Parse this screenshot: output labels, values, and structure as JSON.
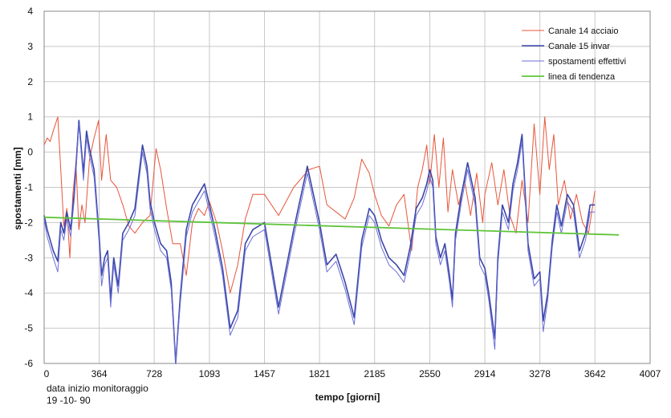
{
  "chart_data": {
    "type": "line",
    "title": "",
    "xlabel": "tempo [giorni]",
    "ylabel": "spostamenti [mm]",
    "xlim": [
      0,
      4007
    ],
    "ylim": [
      -6,
      4
    ],
    "xticks": [
      0,
      364,
      728,
      1093,
      1457,
      1821,
      2185,
      2550,
      2914,
      3278,
      3642,
      4007
    ],
    "yticks": [
      4,
      3,
      2,
      1,
      0,
      -1,
      -2,
      -3,
      -4,
      -5,
      -6
    ],
    "grid": true,
    "legend_position": "top-right",
    "series": [
      {
        "name": "Canale 14 acciaio",
        "color": "#e8553a",
        "x": [
          0,
          20,
          40,
          60,
          90,
          110,
          130,
          150,
          170,
          190,
          210,
          230,
          250,
          270,
          300,
          330,
          360,
          380,
          410,
          440,
          480,
          520,
          560,
          600,
          650,
          700,
          740,
          770,
          810,
          850,
          900,
          940,
          980,
          1020,
          1060,
          1093,
          1140,
          1180,
          1230,
          1280,
          1330,
          1380,
          1457,
          1550,
          1650,
          1750,
          1821,
          1870,
          1930,
          1990,
          2050,
          2100,
          2150,
          2185,
          2230,
          2280,
          2330,
          2380,
          2430,
          2470,
          2500,
          2530,
          2550,
          2580,
          2610,
          2640,
          2670,
          2700,
          2740,
          2780,
          2820,
          2860,
          2900,
          2914,
          2960,
          3000,
          3040,
          3080,
          3120,
          3160,
          3200,
          3240,
          3278,
          3310,
          3340,
          3370,
          3400,
          3440,
          3480,
          3520,
          3560,
          3600,
          3642
        ],
        "y": [
          0.2,
          0.4,
          0.3,
          0.6,
          1.0,
          -0.5,
          -2.1,
          -1.6,
          -3.0,
          -1.2,
          -0.3,
          -2.2,
          -1.5,
          -2.0,
          -0.2,
          0.4,
          0.9,
          -0.8,
          0.5,
          -0.8,
          -1.0,
          -1.5,
          -2.1,
          -2.3,
          -2.0,
          -1.8,
          0.1,
          -0.5,
          -1.6,
          -2.6,
          -2.6,
          -3.5,
          -2.0,
          -1.6,
          -1.8,
          -1.4,
          -2.0,
          -2.8,
          -4.0,
          -3.2,
          -1.9,
          -1.2,
          -1.2,
          -1.8,
          -1.0,
          -0.5,
          -0.4,
          -1.5,
          -1.7,
          -1.9,
          -1.3,
          -0.2,
          -0.6,
          -1.2,
          -1.8,
          -2.1,
          -1.5,
          -1.2,
          -2.8,
          -1.0,
          -0.5,
          0.2,
          -0.9,
          0.5,
          -1.0,
          0.4,
          -1.7,
          -0.5,
          -1.5,
          -0.8,
          -1.8,
          -0.6,
          -2.0,
          -1.2,
          -0.3,
          -1.5,
          -0.5,
          -1.8,
          -2.3,
          -0.8,
          -2.0,
          0.8,
          -1.2,
          1.0,
          -0.5,
          0.5,
          -1.5,
          -0.8,
          -1.9,
          -1.2,
          -2.0,
          -2.3,
          -1.1
        ]
      },
      {
        "name": "Canale 15 invar",
        "color": "#3a46a8",
        "x": [
          0,
          20,
          60,
          90,
          110,
          130,
          150,
          175,
          200,
          230,
          260,
          280,
          300,
          330,
          364,
          380,
          400,
          420,
          440,
          460,
          490,
          520,
          560,
          600,
          650,
          680,
          700,
          730,
          770,
          810,
          840,
          870,
          900,
          940,
          980,
          1020,
          1060,
          1093,
          1130,
          1180,
          1230,
          1280,
          1330,
          1380,
          1457,
          1550,
          1650,
          1740,
          1821,
          1870,
          1930,
          1990,
          2050,
          2100,
          2150,
          2185,
          2230,
          2280,
          2330,
          2380,
          2420,
          2460,
          2500,
          2530,
          2550,
          2570,
          2590,
          2620,
          2650,
          2680,
          2700,
          2720,
          2760,
          2800,
          2850,
          2880,
          2914,
          2940,
          2980,
          3000,
          3030,
          3070,
          3100,
          3130,
          3160,
          3200,
          3240,
          3278,
          3300,
          3330,
          3360,
          3390,
          3420,
          3460,
          3500,
          3540,
          3580,
          3610,
          3642
        ],
        "y": [
          -1.8,
          -2.2,
          -2.8,
          -3.1,
          -2.0,
          -2.3,
          -1.7,
          -2.2,
          -1.1,
          0.9,
          -0.6,
          0.6,
          0.1,
          -0.5,
          -2.4,
          -3.5,
          -3.0,
          -2.8,
          -4.2,
          -3.0,
          -3.8,
          -2.3,
          -2.0,
          -1.6,
          0.2,
          -0.4,
          -1.4,
          -2.0,
          -2.6,
          -2.8,
          -3.7,
          -6.0,
          -4.1,
          -2.2,
          -1.5,
          -1.2,
          -0.9,
          -1.5,
          -2.2,
          -3.3,
          -5.0,
          -4.5,
          -2.6,
          -2.2,
          -2.0,
          -4.4,
          -2.2,
          -0.4,
          -2.0,
          -3.2,
          -2.9,
          -3.7,
          -4.7,
          -2.5,
          -1.6,
          -1.8,
          -2.5,
          -3.0,
          -3.2,
          -3.5,
          -2.7,
          -1.6,
          -1.3,
          -0.9,
          -0.5,
          -0.8,
          -2.4,
          -3.0,
          -2.6,
          -3.5,
          -4.2,
          -2.3,
          -1.2,
          -0.3,
          -1.3,
          -3.0,
          -3.3,
          -4.0,
          -5.3,
          -3.0,
          -1.5,
          -2.0,
          -0.9,
          -0.3,
          0.5,
          -2.6,
          -3.6,
          -3.4,
          -4.8,
          -4.0,
          -2.5,
          -1.5,
          -2.1,
          -1.2,
          -1.5,
          -2.8,
          -2.3,
          -1.5,
          -1.5
        ]
      },
      {
        "name": "spostamenti effettivi",
        "color": "#6b6fd6",
        "x": [
          0,
          20,
          60,
          90,
          110,
          130,
          150,
          175,
          200,
          230,
          260,
          280,
          300,
          330,
          364,
          380,
          400,
          420,
          440,
          460,
          490,
          520,
          560,
          600,
          650,
          680,
          700,
          730,
          770,
          810,
          840,
          870,
          900,
          940,
          980,
          1020,
          1060,
          1093,
          1130,
          1180,
          1230,
          1280,
          1330,
          1380,
          1457,
          1550,
          1650,
          1740,
          1821,
          1870,
          1930,
          1990,
          2050,
          2100,
          2150,
          2185,
          2230,
          2280,
          2330,
          2380,
          2420,
          2460,
          2500,
          2530,
          2550,
          2570,
          2590,
          2620,
          2650,
          2680,
          2700,
          2720,
          2760,
          2800,
          2850,
          2880,
          2914,
          2940,
          2980,
          3000,
          3030,
          3070,
          3100,
          3130,
          3160,
          3200,
          3240,
          3278,
          3300,
          3330,
          3360,
          3390,
          3420,
          3460,
          3500,
          3540,
          3580,
          3610,
          3642
        ],
        "y": [
          -1.9,
          -2.4,
          -3.0,
          -3.4,
          -2.2,
          -2.5,
          -1.9,
          -2.4,
          -1.3,
          0.8,
          -0.8,
          0.4,
          -0.1,
          -0.7,
          -2.6,
          -3.8,
          -3.2,
          -3.0,
          -4.4,
          -3.2,
          -4.0,
          -2.5,
          -2.2,
          -1.8,
          0.0,
          -0.6,
          -1.6,
          -2.2,
          -2.8,
          -3.0,
          -3.9,
          -6.0,
          -4.3,
          -2.4,
          -1.7,
          -1.4,
          -1.1,
          -1.7,
          -2.4,
          -3.5,
          -5.2,
          -4.7,
          -2.8,
          -2.4,
          -2.2,
          -4.6,
          -2.4,
          -0.6,
          -2.2,
          -3.4,
          -3.1,
          -3.9,
          -4.9,
          -2.7,
          -1.8,
          -2.0,
          -2.7,
          -3.2,
          -3.4,
          -3.7,
          -2.9,
          -1.8,
          -1.5,
          -1.1,
          -0.7,
          -1.0,
          -2.6,
          -3.2,
          -2.8,
          -3.7,
          -4.4,
          -2.5,
          -1.4,
          -0.5,
          -1.5,
          -3.2,
          -3.5,
          -4.2,
          -5.6,
          -3.2,
          -1.7,
          -2.2,
          -1.1,
          -0.5,
          0.3,
          -2.8,
          -3.8,
          -3.6,
          -5.1,
          -4.2,
          -2.7,
          -1.7,
          -2.3,
          -1.4,
          -1.7,
          -3.0,
          -2.5,
          -1.7,
          -1.7
        ]
      },
      {
        "name": "linea di tendenza",
        "color": "#5fc43a",
        "x": [
          0,
          3800
        ],
        "y": [
          -1.85,
          -2.35
        ]
      }
    ]
  },
  "annotation": {
    "line1": "data inizio monitoraggio",
    "line2": "19 -10- 90"
  }
}
